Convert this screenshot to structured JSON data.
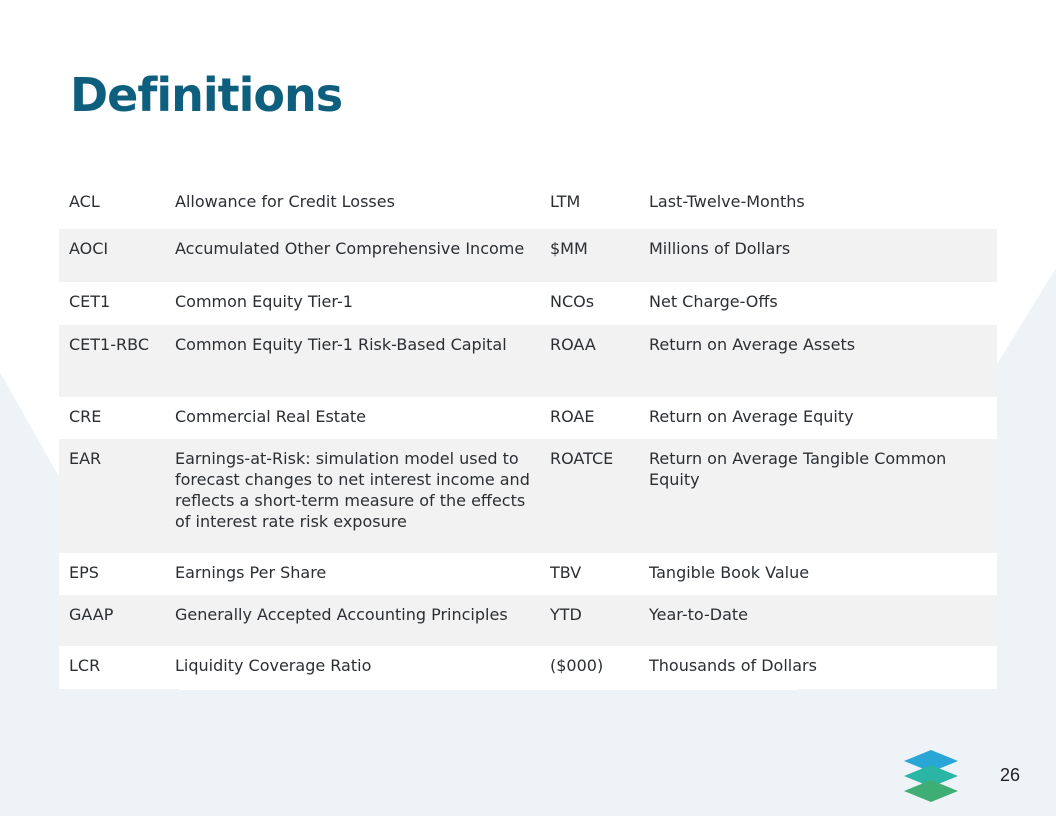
{
  "title": "Definitions",
  "rows": [
    {
      "abbr1": "ACL",
      "def1": "Allowance for Credit Losses",
      "abbr2": "LTM",
      "def2": "Last-Twelve-Months"
    },
    {
      "abbr1": "AOCI",
      "def1": "Accumulated Other Comprehensive Income",
      "abbr2": "$MM",
      "def2": "Millions of Dollars"
    },
    {
      "abbr1": "CET1",
      "def1": "Common Equity Tier-1",
      "abbr2": "NCOs",
      "def2": "Net Charge-Offs"
    },
    {
      "abbr1": "CET1-RBC",
      "def1": "Common Equity Tier-1 Risk-Based Capital",
      "abbr2": "ROAA",
      "def2": "Return on Average Assets"
    },
    {
      "abbr1": "CRE",
      "def1": "Commercial Real Estate",
      "abbr2": "ROAE",
      "def2": "Return on Average Equity"
    },
    {
      "abbr1": "EAR",
      "def1": "Earnings-at-Risk: simulation model used to  forecast changes to net interest income and reflects a short-term measure of the effects of interest rate risk exposure",
      "abbr2": "ROATCE",
      "def2": "Return on Average Tangible Common Equity"
    },
    {
      "abbr1": "EPS",
      "def1": "Earnings Per Share",
      "abbr2": "TBV",
      "def2": "Tangible Book Value"
    },
    {
      "abbr1": "GAAP",
      "def1": "Generally Accepted Accounting Principles",
      "abbr2": "YTD",
      "def2": "Year-to-Date"
    },
    {
      "abbr1": "LCR",
      "def1": "Liquidity Coverage Ratio",
      "abbr2": "($000)",
      "def2": "Thousands of Dollars"
    }
  ],
  "page_number": "26",
  "logo_icon": "layered-stack-logo",
  "colors": {
    "title": "#0e5f7e",
    "background_shape": "#eef3f8",
    "row_shaded": "#f2f2f2",
    "logo_top": "#2aa6d6",
    "logo_bottom": "#3fae74"
  }
}
